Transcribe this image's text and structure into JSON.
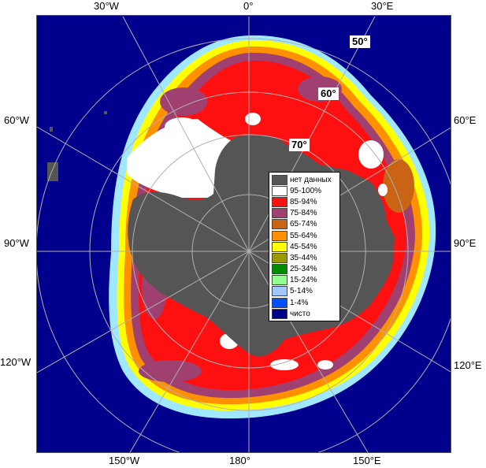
{
  "longitude_labels": {
    "top": [
      "30°W",
      "0°",
      "30°E"
    ],
    "left": [
      "60°W",
      "90°W",
      "120°W"
    ],
    "right": [
      "60°E",
      "90°E",
      "120°E"
    ],
    "bottom": [
      "150°W",
      "180°",
      "150°E"
    ]
  },
  "latitude_labels": [
    "50°",
    "60°",
    "70°"
  ],
  "legend": {
    "items": [
      {
        "label": "нет данных",
        "color": "#555555"
      },
      {
        "label": "95-100%",
        "color": "#ffffff"
      },
      {
        "label": "85-94%",
        "color": "#ff1010"
      },
      {
        "label": "75-84%",
        "color": "#a04070"
      },
      {
        "label": "65-74%",
        "color": "#c86414"
      },
      {
        "label": "55-64%",
        "color": "#ff9000"
      },
      {
        "label": "45-54%",
        "color": "#ffff00"
      },
      {
        "label": "35-44%",
        "color": "#9a9a00"
      },
      {
        "label": "25-34%",
        "color": "#008c00"
      },
      {
        "label": "15-24%",
        "color": "#90ff90"
      },
      {
        "label": "5-14%",
        "color": "#a0c8ff"
      },
      {
        "label": "1-4%",
        "color": "#0050ff"
      },
      {
        "label": "чисто",
        "color": "#00008c"
      }
    ]
  },
  "colors": {
    "ocean": "#00008c",
    "no_data": "#555555",
    "grid": "#b0b0b0"
  }
}
